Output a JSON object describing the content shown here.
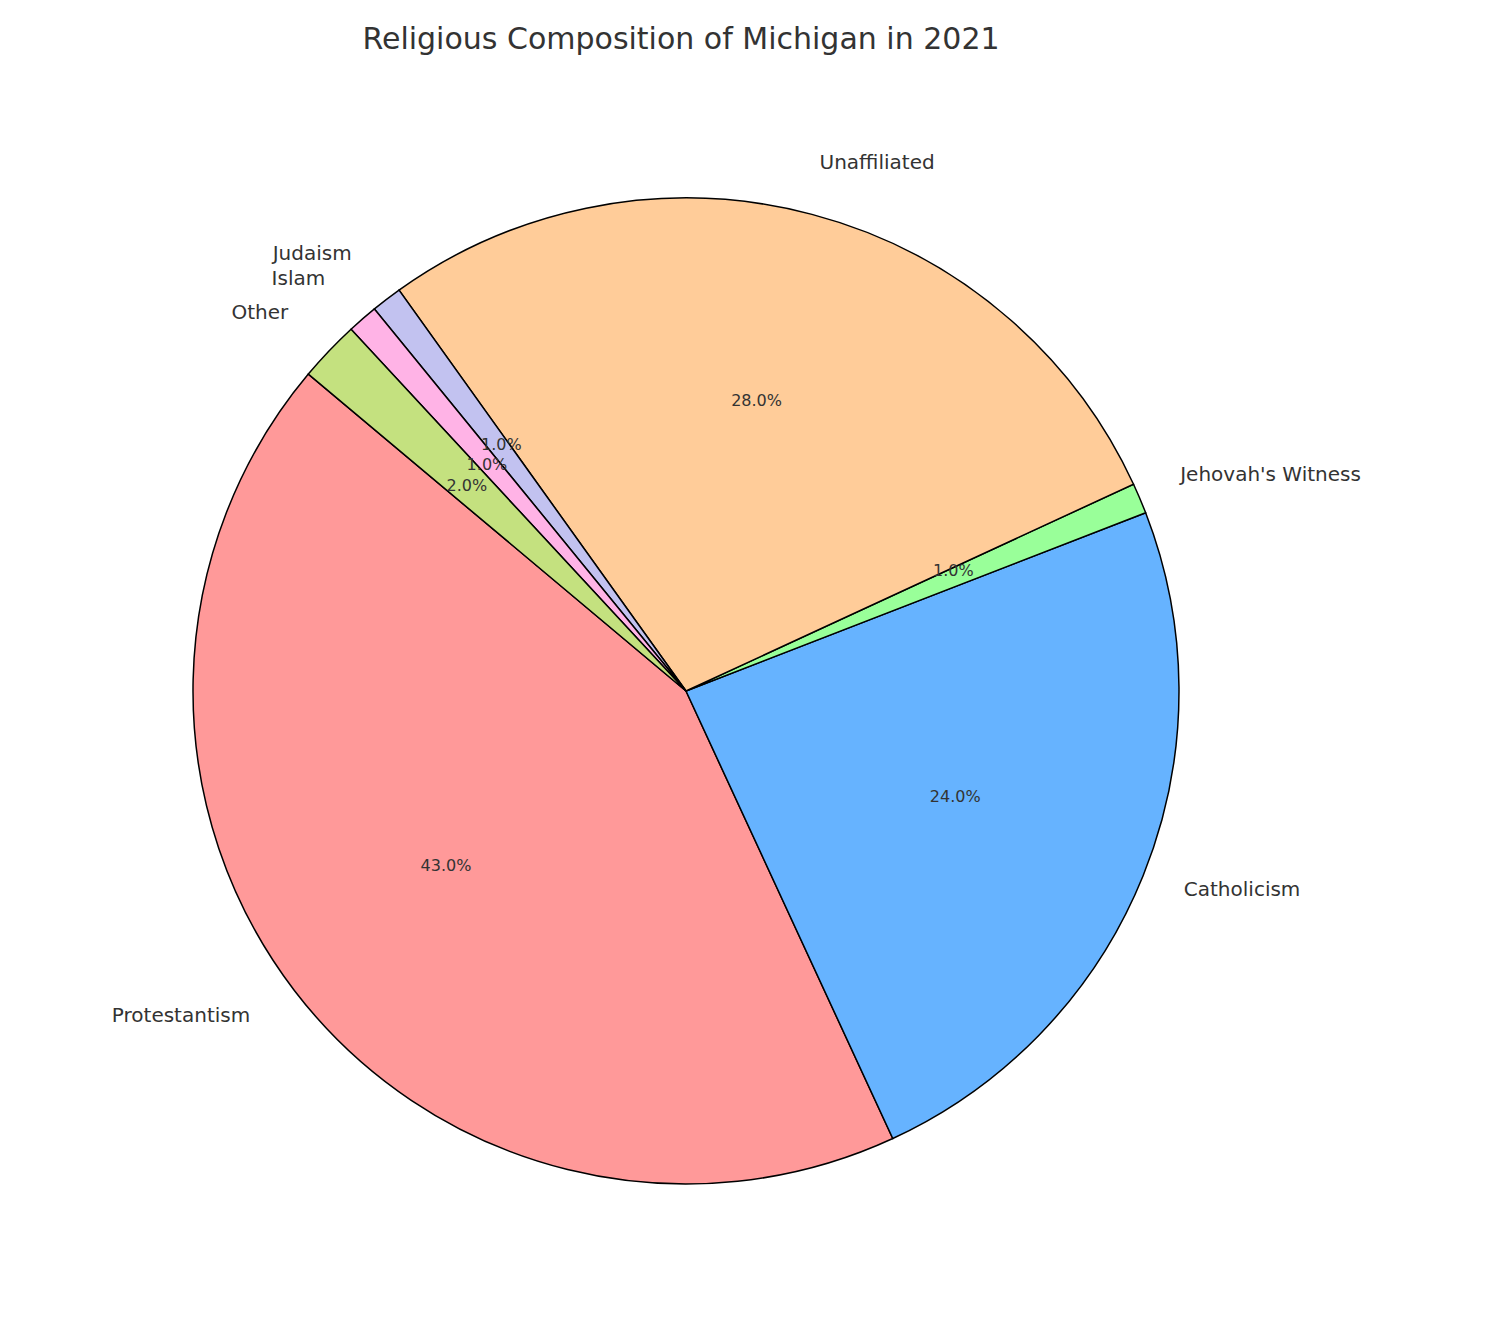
{
  "chart_data": {
    "type": "pie",
    "title": "Religious Composition of Michigan in 2021",
    "categories": [
      "Protestantism",
      "Catholicism",
      "Jehovah's Witness",
      "Unaffiliated",
      "Judaism",
      "Islam",
      "Other"
    ],
    "values": [
      43,
      24,
      1,
      28,
      1,
      1,
      2
    ],
    "value_labels": [
      "43.0%",
      "24.0%",
      "1.0%",
      "28.0%",
      "1.0%",
      "1.0%",
      "2.0%"
    ],
    "colors": [
      "#ff9999",
      "#66b3ff",
      "#99ff99",
      "#ffcc99",
      "#c2c2f0",
      "#ffb3e6",
      "#c4e17f"
    ],
    "data_labels": true
  }
}
